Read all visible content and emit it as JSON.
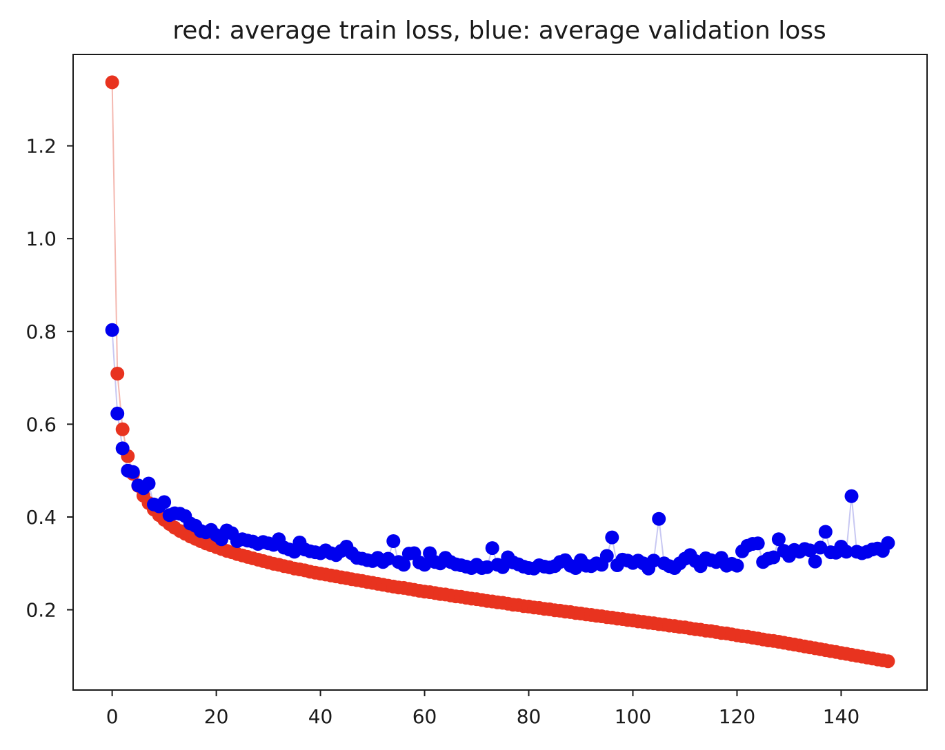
{
  "chart_data": {
    "type": "scatter",
    "title": "red: average train loss, blue: average validation loss",
    "xlabel": "",
    "ylabel": "",
    "xlim": [
      -7.5,
      156.5
    ],
    "ylim": [
      0.027,
      1.397
    ],
    "x_ticks": [
      0,
      20,
      40,
      60,
      80,
      100,
      120,
      140
    ],
    "y_ticks": [
      0.2,
      0.4,
      0.6,
      0.8,
      1.0,
      1.2
    ],
    "grid": false,
    "legend": "none",
    "series": [
      {
        "color": "#e8331f",
        "line_color": "#f4b8b0",
        "x": [
          0,
          1,
          2,
          3,
          4,
          5,
          6,
          7,
          8,
          9,
          10,
          11,
          12,
          13,
          14,
          15,
          16,
          17,
          18,
          19,
          20,
          21,
          22,
          23,
          24,
          25,
          26,
          27,
          28,
          29,
          30,
          31,
          32,
          33,
          34,
          35,
          36,
          37,
          38,
          39,
          40,
          41,
          42,
          43,
          44,
          45,
          46,
          47,
          48,
          49,
          50,
          51,
          52,
          53,
          54,
          55,
          56,
          57,
          58,
          59,
          60,
          61,
          62,
          63,
          64,
          65,
          66,
          67,
          68,
          69,
          70,
          71,
          72,
          73,
          74,
          75,
          76,
          77,
          78,
          79,
          80,
          81,
          82,
          83,
          84,
          85,
          86,
          87,
          88,
          89,
          90,
          91,
          92,
          93,
          94,
          95,
          96,
          97,
          98,
          99,
          100,
          101,
          102,
          103,
          104,
          105,
          106,
          107,
          108,
          109,
          110,
          111,
          112,
          113,
          114,
          115,
          116,
          117,
          118,
          119,
          120,
          121,
          122,
          123,
          124,
          125,
          126,
          127,
          128,
          129,
          130,
          131,
          132,
          133,
          134,
          135,
          136,
          137,
          138,
          139,
          140,
          141,
          142,
          143,
          144,
          145,
          146,
          147,
          148,
          149
        ],
        "values": [
          1.337,
          0.709,
          0.589,
          0.531,
          0.493,
          0.467,
          0.446,
          0.43,
          0.416,
          0.404,
          0.394,
          0.385,
          0.377,
          0.37,
          0.364,
          0.358,
          0.353,
          0.348,
          0.343,
          0.339,
          0.335,
          0.331,
          0.327,
          0.324,
          0.32,
          0.317,
          0.314,
          0.311,
          0.308,
          0.305,
          0.302,
          0.299,
          0.297,
          0.294,
          0.292,
          0.289,
          0.287,
          0.285,
          0.282,
          0.28,
          0.278,
          0.276,
          0.274,
          0.272,
          0.27,
          0.268,
          0.266,
          0.264,
          0.262,
          0.26,
          0.258,
          0.256,
          0.254,
          0.252,
          0.25,
          0.248,
          0.247,
          0.245,
          0.243,
          0.241,
          0.239,
          0.238,
          0.236,
          0.234,
          0.233,
          0.231,
          0.229,
          0.228,
          0.226,
          0.224,
          0.223,
          0.221,
          0.219,
          0.218,
          0.216,
          0.215,
          0.213,
          0.211,
          0.21,
          0.208,
          0.207,
          0.205,
          0.204,
          0.202,
          0.201,
          0.199,
          0.198,
          0.196,
          0.195,
          0.193,
          0.192,
          0.19,
          0.189,
          0.187,
          0.186,
          0.184,
          0.183,
          0.181,
          0.18,
          0.178,
          0.177,
          0.175,
          0.174,
          0.172,
          0.171,
          0.169,
          0.168,
          0.166,
          0.165,
          0.163,
          0.162,
          0.16,
          0.158,
          0.157,
          0.155,
          0.154,
          0.152,
          0.15,
          0.149,
          0.147,
          0.145,
          0.143,
          0.142,
          0.14,
          0.138,
          0.136,
          0.134,
          0.133,
          0.131,
          0.129,
          0.127,
          0.125,
          0.123,
          0.121,
          0.119,
          0.117,
          0.115,
          0.113,
          0.111,
          0.109,
          0.107,
          0.105,
          0.103,
          0.101,
          0.099,
          0.097,
          0.095,
          0.093,
          0.091,
          0.089
        ]
      },
      {
        "color": "#0000ee",
        "line_color": "#c8c8f2",
        "x": [
          0,
          1,
          2,
          3,
          4,
          5,
          6,
          7,
          8,
          9,
          10,
          11,
          12,
          13,
          14,
          15,
          16,
          17,
          18,
          19,
          20,
          21,
          22,
          23,
          24,
          25,
          26,
          27,
          28,
          29,
          30,
          31,
          32,
          33,
          34,
          35,
          36,
          37,
          38,
          39,
          40,
          41,
          42,
          43,
          44,
          45,
          46,
          47,
          48,
          49,
          50,
          51,
          52,
          53,
          54,
          55,
          56,
          57,
          58,
          59,
          60,
          61,
          62,
          63,
          64,
          65,
          66,
          67,
          68,
          69,
          70,
          71,
          72,
          73,
          74,
          75,
          76,
          77,
          78,
          79,
          80,
          81,
          82,
          83,
          84,
          85,
          86,
          87,
          88,
          89,
          90,
          91,
          92,
          93,
          94,
          95,
          96,
          97,
          98,
          99,
          100,
          101,
          102,
          103,
          104,
          105,
          106,
          107,
          108,
          109,
          110,
          111,
          112,
          113,
          114,
          115,
          116,
          117,
          118,
          119,
          120,
          121,
          122,
          123,
          124,
          125,
          126,
          127,
          128,
          129,
          130,
          131,
          132,
          133,
          134,
          135,
          136,
          137,
          138,
          139,
          140,
          141,
          142,
          143,
          144,
          145,
          146,
          147,
          148,
          149
        ],
        "values": [
          0.803,
          0.623,
          0.548,
          0.5,
          0.497,
          0.468,
          0.462,
          0.472,
          0.427,
          0.423,
          0.432,
          0.404,
          0.408,
          0.407,
          0.402,
          0.386,
          0.381,
          0.37,
          0.367,
          0.372,
          0.361,
          0.352,
          0.371,
          0.365,
          0.348,
          0.352,
          0.349,
          0.347,
          0.342,
          0.346,
          0.343,
          0.34,
          0.352,
          0.334,
          0.33,
          0.325,
          0.345,
          0.33,
          0.326,
          0.324,
          0.322,
          0.328,
          0.322,
          0.318,
          0.327,
          0.336,
          0.322,
          0.312,
          0.31,
          0.307,
          0.305,
          0.312,
          0.303,
          0.31,
          0.348,
          0.303,
          0.297,
          0.321,
          0.322,
          0.302,
          0.297,
          0.322,
          0.303,
          0.3,
          0.312,
          0.303,
          0.298,
          0.296,
          0.293,
          0.29,
          0.297,
          0.29,
          0.292,
          0.333,
          0.297,
          0.292,
          0.313,
          0.302,
          0.298,
          0.293,
          0.29,
          0.289,
          0.296,
          0.293,
          0.291,
          0.294,
          0.303,
          0.307,
          0.295,
          0.29,
          0.307,
          0.295,
          0.294,
          0.3,
          0.297,
          0.316,
          0.356,
          0.296,
          0.308,
          0.306,
          0.301,
          0.306,
          0.3,
          0.289,
          0.306,
          0.396,
          0.3,
          0.294,
          0.29,
          0.3,
          0.31,
          0.318,
          0.305,
          0.294,
          0.311,
          0.307,
          0.303,
          0.312,
          0.295,
          0.299,
          0.295,
          0.326,
          0.338,
          0.342,
          0.343,
          0.303,
          0.31,
          0.313,
          0.352,
          0.327,
          0.316,
          0.329,
          0.325,
          0.331,
          0.328,
          0.304,
          0.334,
          0.368,
          0.324,
          0.323,
          0.336,
          0.325,
          0.445,
          0.325,
          0.322,
          0.325,
          0.33,
          0.332,
          0.327,
          0.344
        ]
      }
    ]
  }
}
